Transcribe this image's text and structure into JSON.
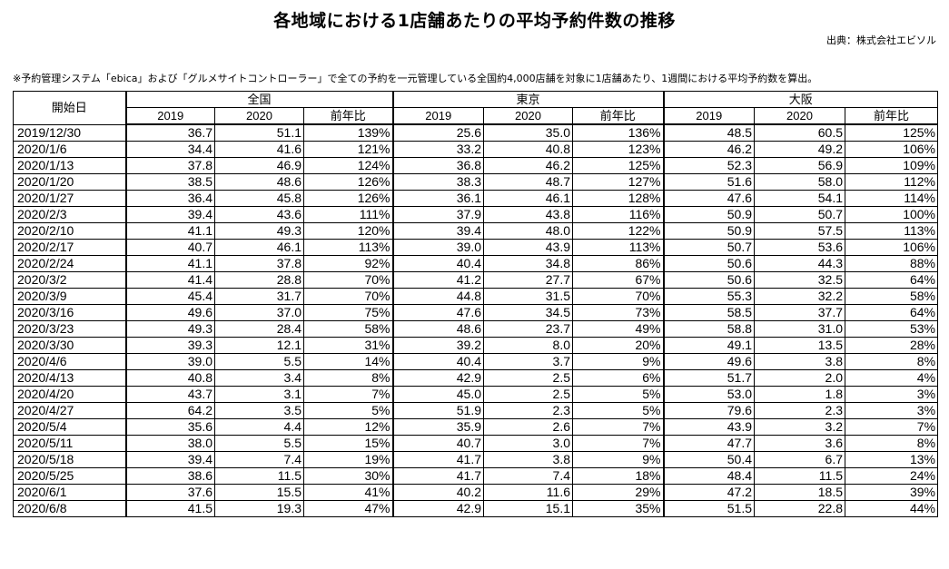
{
  "title": "各地域における1店舗あたりの平均予約件数の推移",
  "source": "出典：株式会社エビソル",
  "note": "※予約管理システム「ebica」および「グルメサイトコントローラー」で全ての予約を一元管理している全国約4,000店舗を対象に1店舗あたり、1週間における平均予約数を算出。",
  "table": {
    "date_header": "開始日",
    "regions": [
      "全国",
      "東京",
      "大阪"
    ],
    "sub_headers": [
      "2019",
      "2020",
      "前年比"
    ],
    "rows": [
      [
        "2019/12/30",
        "36.7",
        "51.1",
        "139%",
        "25.6",
        "35.0",
        "136%",
        "48.5",
        "60.5",
        "125%"
      ],
      [
        "2020/1/6",
        "34.4",
        "41.6",
        "121%",
        "33.2",
        "40.8",
        "123%",
        "46.2",
        "49.2",
        "106%"
      ],
      [
        "2020/1/13",
        "37.8",
        "46.9",
        "124%",
        "36.8",
        "46.2",
        "125%",
        "52.3",
        "56.9",
        "109%"
      ],
      [
        "2020/1/20",
        "38.5",
        "48.6",
        "126%",
        "38.3",
        "48.7",
        "127%",
        "51.6",
        "58.0",
        "112%"
      ],
      [
        "2020/1/27",
        "36.4",
        "45.8",
        "126%",
        "36.1",
        "46.1",
        "128%",
        "47.6",
        "54.1",
        "114%"
      ],
      [
        "2020/2/3",
        "39.4",
        "43.6",
        "111%",
        "37.9",
        "43.8",
        "116%",
        "50.9",
        "50.7",
        "100%"
      ],
      [
        "2020/2/10",
        "41.1",
        "49.3",
        "120%",
        "39.4",
        "48.0",
        "122%",
        "50.9",
        "57.5",
        "113%"
      ],
      [
        "2020/2/17",
        "40.7",
        "46.1",
        "113%",
        "39.0",
        "43.9",
        "113%",
        "50.7",
        "53.6",
        "106%"
      ],
      [
        "2020/2/24",
        "41.1",
        "37.8",
        "92%",
        "40.4",
        "34.8",
        "86%",
        "50.6",
        "44.3",
        "88%"
      ],
      [
        "2020/3/2",
        "41.4",
        "28.8",
        "70%",
        "41.2",
        "27.7",
        "67%",
        "50.6",
        "32.5",
        "64%"
      ],
      [
        "2020/3/9",
        "45.4",
        "31.7",
        "70%",
        "44.8",
        "31.5",
        "70%",
        "55.3",
        "32.2",
        "58%"
      ],
      [
        "2020/3/16",
        "49.6",
        "37.0",
        "75%",
        "47.6",
        "34.5",
        "73%",
        "58.5",
        "37.7",
        "64%"
      ],
      [
        "2020/3/23",
        "49.3",
        "28.4",
        "58%",
        "48.6",
        "23.7",
        "49%",
        "58.8",
        "31.0",
        "53%"
      ],
      [
        "2020/3/30",
        "39.3",
        "12.1",
        "31%",
        "39.2",
        "8.0",
        "20%",
        "49.1",
        "13.5",
        "28%"
      ],
      [
        "2020/4/6",
        "39.0",
        "5.5",
        "14%",
        "40.4",
        "3.7",
        "9%",
        "49.6",
        "3.8",
        "8%"
      ],
      [
        "2020/4/13",
        "40.8",
        "3.4",
        "8%",
        "42.9",
        "2.5",
        "6%",
        "51.7",
        "2.0",
        "4%"
      ],
      [
        "2020/4/20",
        "43.7",
        "3.1",
        "7%",
        "45.0",
        "2.5",
        "5%",
        "53.0",
        "1.8",
        "3%"
      ],
      [
        "2020/4/27",
        "64.2",
        "3.5",
        "5%",
        "51.9",
        "2.3",
        "5%",
        "79.6",
        "2.3",
        "3%"
      ],
      [
        "2020/5/4",
        "35.6",
        "4.4",
        "12%",
        "35.9",
        "2.6",
        "7%",
        "43.9",
        "3.2",
        "7%"
      ],
      [
        "2020/5/11",
        "38.0",
        "5.5",
        "15%",
        "40.7",
        "3.0",
        "7%",
        "47.7",
        "3.6",
        "8%"
      ],
      [
        "2020/5/18",
        "39.4",
        "7.4",
        "19%",
        "41.7",
        "3.8",
        "9%",
        "50.4",
        "6.7",
        "13%"
      ],
      [
        "2020/5/25",
        "38.6",
        "11.5",
        "30%",
        "41.7",
        "7.4",
        "18%",
        "48.4",
        "11.5",
        "24%"
      ],
      [
        "2020/6/1",
        "37.6",
        "15.5",
        "41%",
        "40.2",
        "11.6",
        "29%",
        "47.2",
        "18.5",
        "39%"
      ],
      [
        "2020/6/8",
        "41.5",
        "19.3",
        "47%",
        "42.9",
        "15.1",
        "35%",
        "51.5",
        "22.8",
        "44%"
      ]
    ]
  }
}
